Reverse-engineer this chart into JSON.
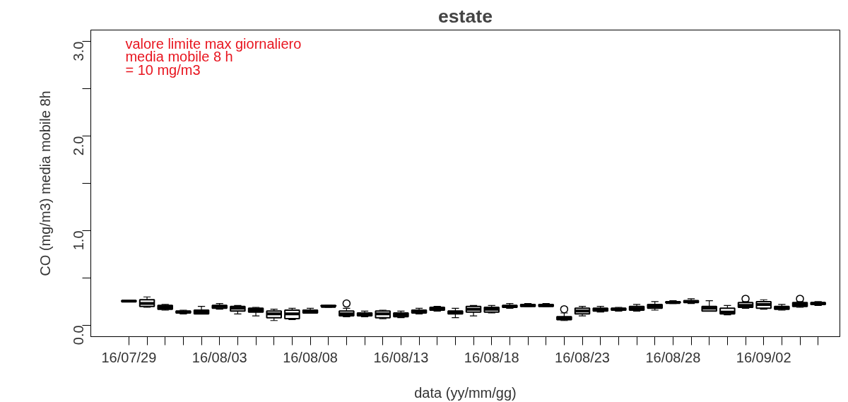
{
  "chart_data": {
    "type": "box",
    "title": "estate",
    "xlabel": "data (yy/mm/gg)",
    "ylabel": "CO (mg/m3) media mobile 8h",
    "annotations": [
      "valore limite max giornaliero\nmedia mobile 8 h\n = 10 mg/m3"
    ],
    "categories": [
      "16/07/29",
      null,
      null,
      null,
      null,
      "16/08/03",
      null,
      null,
      null,
      null,
      "16/08/08",
      null,
      null,
      null,
      null,
      "16/08/13",
      null,
      null,
      null,
      null,
      "16/08/18",
      null,
      null,
      null,
      null,
      "16/08/23",
      null,
      null,
      null,
      null,
      "16/08/28",
      null,
      null,
      null,
      null,
      "16/09/02",
      null,
      null,
      null
    ],
    "ylim": [
      -0.12,
      3.12
    ],
    "yticks": [
      {
        "value": 0,
        "label": "0.0"
      },
      {
        "value": 1,
        "label": "1.0"
      },
      {
        "value": 2,
        "label": "2.0"
      },
      {
        "value": 3,
        "label": "3.0"
      }
    ],
    "boxes": [
      {
        "low": 0.25,
        "q1": 0.25,
        "median": 0.255,
        "q3": 0.26,
        "high": 0.26
      },
      {
        "low": 0.19,
        "q1": 0.2,
        "median": 0.23,
        "q3": 0.27,
        "high": 0.3
      },
      {
        "low": 0.16,
        "q1": 0.17,
        "median": 0.19,
        "q3": 0.21,
        "high": 0.22
      },
      {
        "low": 0.12,
        "q1": 0.13,
        "median": 0.14,
        "q3": 0.15,
        "high": 0.16
      },
      {
        "low": 0.12,
        "q1": 0.12,
        "median": 0.14,
        "q3": 0.16,
        "high": 0.2
      },
      {
        "low": 0.17,
        "q1": 0.18,
        "median": 0.2,
        "q3": 0.21,
        "high": 0.23
      },
      {
        "low": 0.12,
        "q1": 0.15,
        "median": 0.18,
        "q3": 0.2,
        "high": 0.21
      },
      {
        "low": 0.1,
        "q1": 0.14,
        "median": 0.16,
        "q3": 0.18,
        "high": 0.19
      },
      {
        "low": 0.05,
        "q1": 0.08,
        "median": 0.12,
        "q3": 0.15,
        "high": 0.17
      },
      {
        "low": 0.06,
        "q1": 0.07,
        "median": 0.12,
        "q3": 0.16,
        "high": 0.18
      },
      {
        "low": 0.13,
        "q1": 0.13,
        "median": 0.15,
        "q3": 0.16,
        "high": 0.18
      },
      {
        "low": 0.19,
        "q1": 0.2,
        "median": 0.2,
        "q3": 0.21,
        "high": 0.21
      },
      {
        "low": 0.09,
        "q1": 0.1,
        "median": 0.12,
        "q3": 0.15,
        "high": 0.18,
        "outliers": [
          0.23
        ]
      },
      {
        "low": 0.09,
        "q1": 0.1,
        "median": 0.12,
        "q3": 0.13,
        "high": 0.15
      },
      {
        "low": 0.07,
        "q1": 0.08,
        "median": 0.12,
        "q3": 0.15,
        "high": 0.16
      },
      {
        "low": 0.08,
        "q1": 0.09,
        "median": 0.11,
        "q3": 0.13,
        "high": 0.15
      },
      {
        "low": 0.12,
        "q1": 0.13,
        "median": 0.15,
        "q3": 0.16,
        "high": 0.18
      },
      {
        "low": 0.15,
        "q1": 0.16,
        "median": 0.17,
        "q3": 0.19,
        "high": 0.2
      },
      {
        "low": 0.08,
        "q1": 0.12,
        "median": 0.14,
        "q3": 0.15,
        "high": 0.18
      },
      {
        "low": 0.1,
        "q1": 0.14,
        "median": 0.17,
        "q3": 0.2,
        "high": 0.21
      },
      {
        "low": 0.13,
        "q1": 0.14,
        "median": 0.17,
        "q3": 0.19,
        "high": 0.21
      },
      {
        "low": 0.18,
        "q1": 0.19,
        "median": 0.2,
        "q3": 0.21,
        "high": 0.23
      },
      {
        "low": 0.2,
        "q1": 0.2,
        "median": 0.21,
        "q3": 0.22,
        "high": 0.23
      },
      {
        "low": 0.2,
        "q1": 0.2,
        "median": 0.21,
        "q3": 0.22,
        "high": 0.23
      },
      {
        "low": 0.05,
        "q1": 0.06,
        "median": 0.07,
        "q3": 0.09,
        "high": 0.13,
        "outliers": [
          0.17
        ]
      },
      {
        "low": 0.1,
        "q1": 0.12,
        "median": 0.15,
        "q3": 0.18,
        "high": 0.2
      },
      {
        "low": 0.14,
        "q1": 0.15,
        "median": 0.16,
        "q3": 0.18,
        "high": 0.2
      },
      {
        "low": 0.15,
        "q1": 0.16,
        "median": 0.17,
        "q3": 0.18,
        "high": 0.19
      },
      {
        "low": 0.15,
        "q1": 0.16,
        "median": 0.18,
        "q3": 0.2,
        "high": 0.22
      },
      {
        "low": 0.16,
        "q1": 0.18,
        "median": 0.2,
        "q3": 0.22,
        "high": 0.25
      },
      {
        "low": 0.23,
        "q1": 0.24,
        "median": 0.24,
        "q3": 0.25,
        "high": 0.26
      },
      {
        "low": 0.23,
        "q1": 0.24,
        "median": 0.25,
        "q3": 0.26,
        "high": 0.28
      },
      {
        "low": 0.15,
        "q1": 0.15,
        "median": 0.18,
        "q3": 0.2,
        "high": 0.26
      },
      {
        "low": 0.11,
        "q1": 0.12,
        "median": 0.14,
        "q3": 0.18,
        "high": 0.21
      },
      {
        "low": 0.18,
        "q1": 0.19,
        "median": 0.21,
        "q3": 0.24,
        "high": 0.25,
        "outliers": [
          0.28
        ]
      },
      {
        "low": 0.17,
        "q1": 0.18,
        "median": 0.22,
        "q3": 0.25,
        "high": 0.27
      },
      {
        "low": 0.16,
        "q1": 0.17,
        "median": 0.19,
        "q3": 0.2,
        "high": 0.22
      },
      {
        "low": 0.19,
        "q1": 0.2,
        "median": 0.22,
        "q3": 0.24,
        "high": 0.25,
        "outliers": [
          0.28
        ]
      },
      {
        "low": 0.21,
        "q1": 0.22,
        "median": 0.23,
        "q3": 0.24,
        "high": 0.25
      }
    ]
  }
}
